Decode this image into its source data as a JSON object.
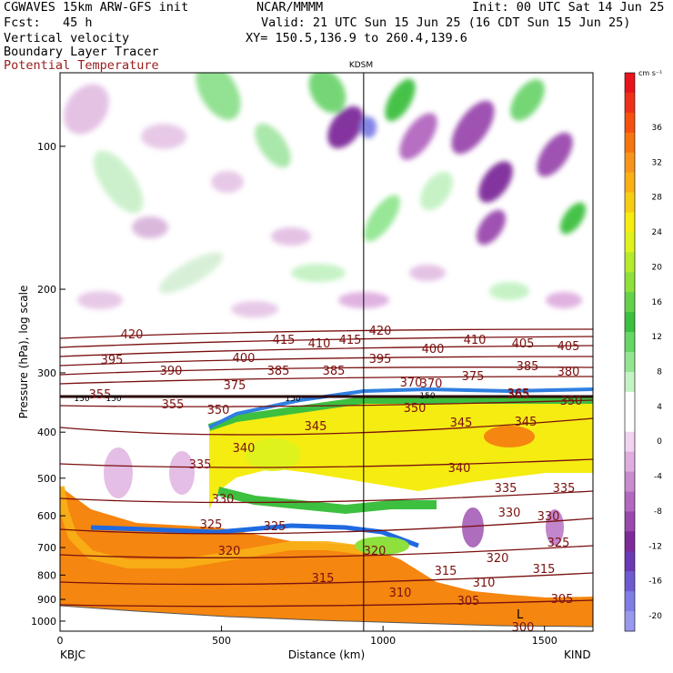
{
  "header": {
    "model": "CGWAVES 15km ARW-GFS init",
    "center": "NCAR/MMMM",
    "init": "Init: 00 UTC Sat 14 Jun 25",
    "fcst": "Fcst:   45 h",
    "valid": "Valid: 21 UTC Sun 15 Jun 25 (16 CDT Sun 15 Jun 25)",
    "xy": "XY= 150.5,136.9 to 260.4,139.6",
    "field1": "Vertical velocity",
    "field2": "Boundary Layer Tracer",
    "field3": "Potential Temperature",
    "field3_color": "#9b1b1b"
  },
  "chart_data": {
    "type": "cross-section",
    "title": "KDSM",
    "xlabel": "Distance (km)",
    "ylabel": "Pressure (hPa), log scale",
    "x_ticks": [
      "0",
      "500",
      "1000",
      "1500"
    ],
    "x_tick_values": [
      0,
      500,
      1000,
      1500
    ],
    "xlim": [
      0,
      1650
    ],
    "y_ticks": [
      "100",
      "200",
      "300",
      "400",
      "500",
      "600",
      "700",
      "800",
      "900",
      "1000"
    ],
    "y_tick_values": [
      100,
      200,
      300,
      400,
      500,
      600,
      700,
      800,
      900,
      1000
    ],
    "y_scale": "log",
    "left_station": "KBJC",
    "right_station": "KIND",
    "marker_station": "KDSM",
    "marker_x_km": 940,
    "colorbar": {
      "unit": "cm s⁻¹",
      "labels": [
        "36",
        "32",
        "28",
        "24",
        "20",
        "16",
        "12",
        "8",
        "4",
        "0",
        "-4",
        "-8",
        "-12",
        "-16",
        "-20"
      ],
      "colors": [
        "#e8141c",
        "#ef3018",
        "#f5500f",
        "#f77510",
        "#f7951a",
        "#f8b016",
        "#f7cd14",
        "#f5ec12",
        "#dff21c",
        "#b5ea2d",
        "#8ee03c",
        "#63d24a",
        "#3dbf3f",
        "#64d764",
        "#92e692",
        "#c3f2c3",
        "#ffffff",
        "#ffffff",
        "#f1d2f0",
        "#dfaedf",
        "#c98ccf",
        "#b368bf",
        "#9a48ad",
        "#7e2a9a",
        "#6c39b4",
        "#6f5ad0",
        "#7e7ee4",
        "#9898ee"
      ]
    },
    "theta_labels": [
      "420",
      "415",
      "410",
      "405",
      "420",
      "415",
      "410",
      "405",
      "395",
      "400",
      "385",
      "385",
      "395",
      "400",
      "385",
      "380",
      "390",
      "375",
      "370",
      "375",
      "355",
      "350",
      "350",
      "365",
      "350",
      "345",
      "345",
      "345",
      "340",
      "340",
      "335",
      "335",
      "335",
      "330",
      "330",
      "330",
      "325",
      "325",
      "325",
      "320",
      "320",
      "320",
      "315",
      "315",
      "310",
      "315",
      "310",
      "305",
      "305",
      "300",
      "370",
      "365",
      "355"
    ],
    "tracer_labels": [
      "150",
      "150",
      "150",
      "150"
    ],
    "low_label": "L"
  }
}
